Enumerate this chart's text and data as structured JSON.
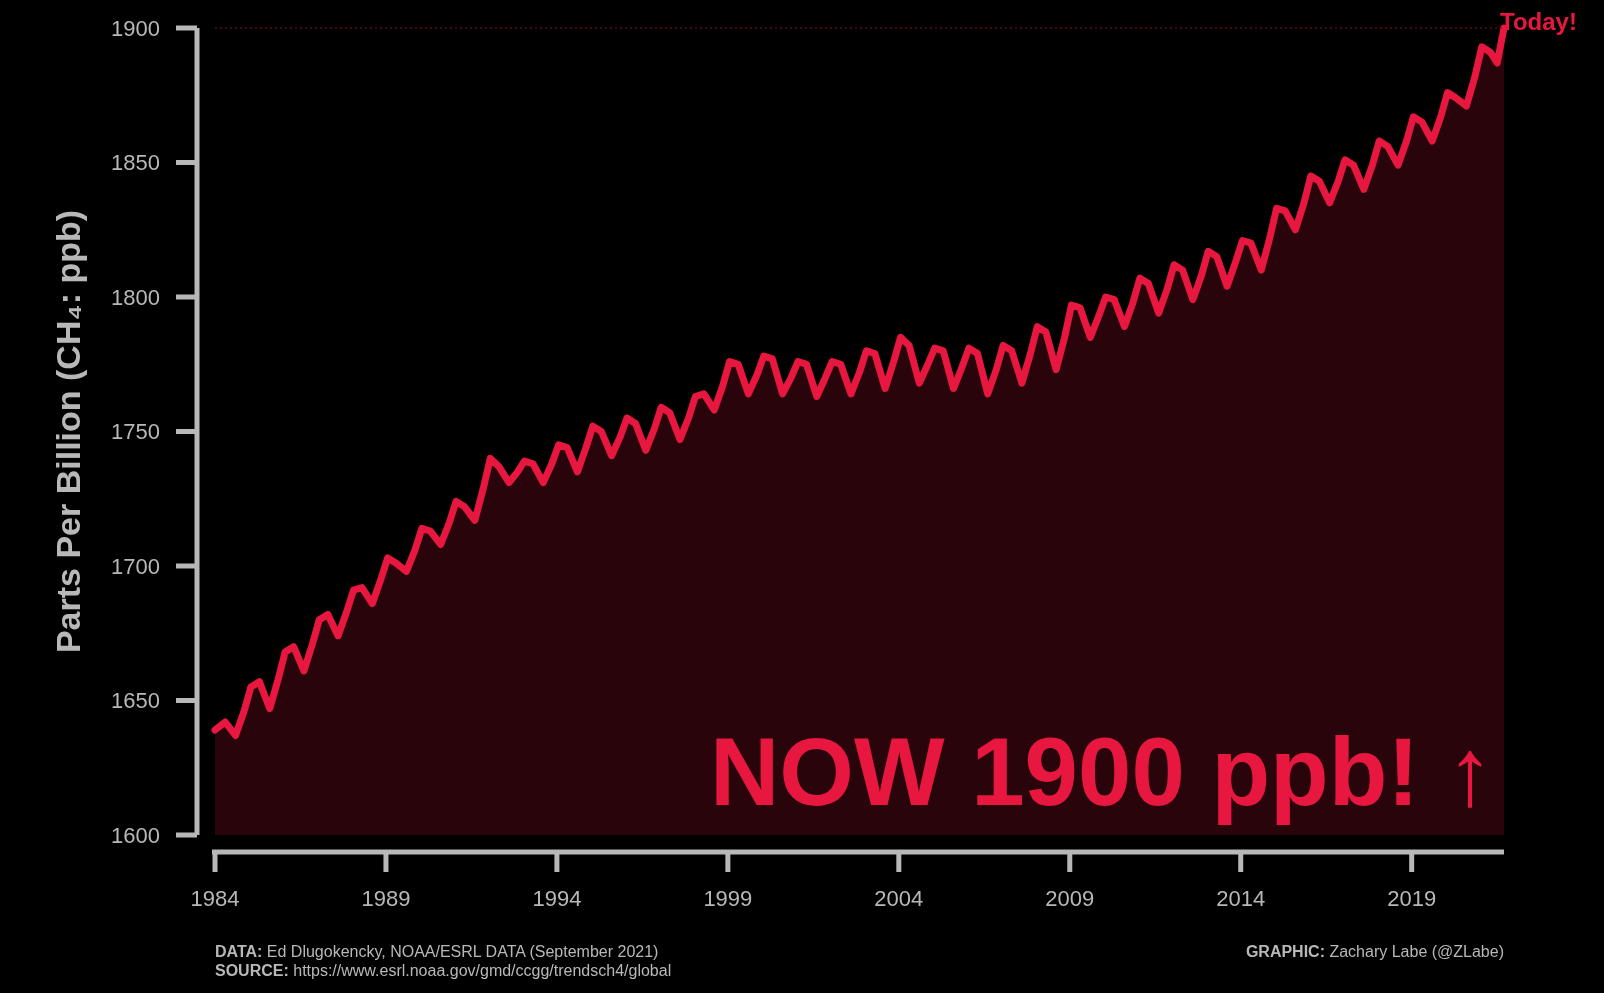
{
  "chart_data": {
    "type": "area",
    "ylabel": "Parts Per Billion (CH₄: ppb)",
    "xlim": [
      1984,
      2021.7
    ],
    "xticks": [
      1984,
      1989,
      1994,
      1999,
      2004,
      2009,
      2014,
      2019
    ],
    "ylim": [
      1600,
      1900
    ],
    "yticks": [
      1600,
      1650,
      1700,
      1750,
      1800,
      1850,
      1900
    ],
    "grid": false,
    "ref_lines": [
      {
        "axis": "y",
        "value": 1900,
        "color": "#8a1024",
        "line_style": "dotted"
      }
    ],
    "annotations": [
      {
        "text": "Today!",
        "x": 2021.7,
        "y": 1900
      },
      "NOW 1900 ppb! ↑",
      "DATA: Ed Dlugokencky, NOAA/ESRL DATA  (September 2021)",
      "SOURCE: https://www.esrl.noaa.gov/gmd/ccgg/trendsch4/global",
      "GRAPHIC: Zachary Labe (@ZLabe)"
    ],
    "series": [
      {
        "color": "#e8173f",
        "x": [
          1984,
          1984.3,
          1984.6,
          1984.85,
          1985.05,
          1985.3,
          1985.6,
          1985.85,
          1986.05,
          1986.3,
          1986.6,
          1986.85,
          1987.05,
          1987.3,
          1987.6,
          1987.85,
          1988.05,
          1988.3,
          1988.6,
          1988.85,
          1989.05,
          1989.3,
          1989.6,
          1989.85,
          1990.05,
          1990.3,
          1990.6,
          1990.85,
          1991.05,
          1991.3,
          1991.6,
          1991.85,
          1992.05,
          1992.3,
          1992.6,
          1992.85,
          1993.05,
          1993.3,
          1993.6,
          1993.85,
          1994.05,
          1994.3,
          1994.6,
          1994.85,
          1995.05,
          1995.3,
          1995.6,
          1995.85,
          1996.05,
          1996.3,
          1996.6,
          1996.85,
          1997.05,
          1997.3,
          1997.6,
          1997.85,
          1998.05,
          1998.3,
          1998.6,
          1998.85,
          1999.05,
          1999.3,
          1999.6,
          1999.85,
          2000.05,
          2000.3,
          2000.6,
          2000.85,
          2001.05,
          2001.3,
          2001.6,
          2001.85,
          2002.05,
          2002.3,
          2002.6,
          2002.85,
          2003.05,
          2003.3,
          2003.6,
          2003.85,
          2004.05,
          2004.3,
          2004.6,
          2004.85,
          2005.05,
          2005.3,
          2005.6,
          2005.85,
          2006.05,
          2006.3,
          2006.6,
          2006.85,
          2007.05,
          2007.3,
          2007.6,
          2007.85,
          2008.05,
          2008.3,
          2008.6,
          2008.85,
          2009.05,
          2009.3,
          2009.6,
          2009.85,
          2010.05,
          2010.3,
          2010.6,
          2010.85,
          2011.05,
          2011.3,
          2011.6,
          2011.85,
          2012.05,
          2012.3,
          2012.6,
          2012.85,
          2013.05,
          2013.3,
          2013.6,
          2013.85,
          2014.05,
          2014.3,
          2014.6,
          2014.85,
          2015.05,
          2015.3,
          2015.6,
          2015.85,
          2016.05,
          2016.3,
          2016.6,
          2016.85,
          2017.05,
          2017.3,
          2017.6,
          2017.85,
          2018.05,
          2018.3,
          2018.6,
          2018.85,
          2019.05,
          2019.3,
          2019.6,
          2019.85,
          2020.05,
          2020.3,
          2020.6,
          2020.85,
          2021.05,
          2021.3,
          2021.5,
          2021.7
        ],
        "values": [
          1639,
          1642,
          1637,
          1646,
          1655,
          1657,
          1647,
          1658,
          1668,
          1670,
          1661,
          1671,
          1680,
          1682,
          1674,
          1683,
          1691,
          1692,
          1686,
          1695,
          1703,
          1701,
          1698,
          1706,
          1714,
          1713,
          1708,
          1716,
          1724,
          1722,
          1717,
          1729,
          1740,
          1737,
          1731,
          1735,
          1739,
          1738,
          1731,
          1738,
          1745,
          1744,
          1735,
          1744,
          1752,
          1750,
          1741,
          1748,
          1755,
          1753,
          1743,
          1751,
          1759,
          1757,
          1747,
          1755,
          1763,
          1764,
          1758,
          1767,
          1776,
          1775,
          1764,
          1771,
          1778,
          1777,
          1764,
          1770,
          1776,
          1775,
          1763,
          1770,
          1776,
          1775,
          1764,
          1772,
          1780,
          1779,
          1766,
          1776,
          1785,
          1782,
          1768,
          1775,
          1781,
          1780,
          1766,
          1774,
          1781,
          1779,
          1764,
          1773,
          1782,
          1780,
          1768,
          1779,
          1789,
          1787,
          1773,
          1785,
          1797,
          1796,
          1785,
          1793,
          1800,
          1799,
          1789,
          1798,
          1807,
          1805,
          1794,
          1803,
          1812,
          1810,
          1799,
          1808,
          1817,
          1815,
          1804,
          1813,
          1821,
          1820,
          1810,
          1822,
          1833,
          1832,
          1825,
          1835,
          1845,
          1843,
          1835,
          1843,
          1851,
          1849,
          1840,
          1849,
          1858,
          1856,
          1849,
          1858,
          1867,
          1865,
          1858,
          1867,
          1876,
          1874,
          1871,
          1882,
          1893,
          1891,
          1887,
          1900
        ]
      }
    ]
  }
}
